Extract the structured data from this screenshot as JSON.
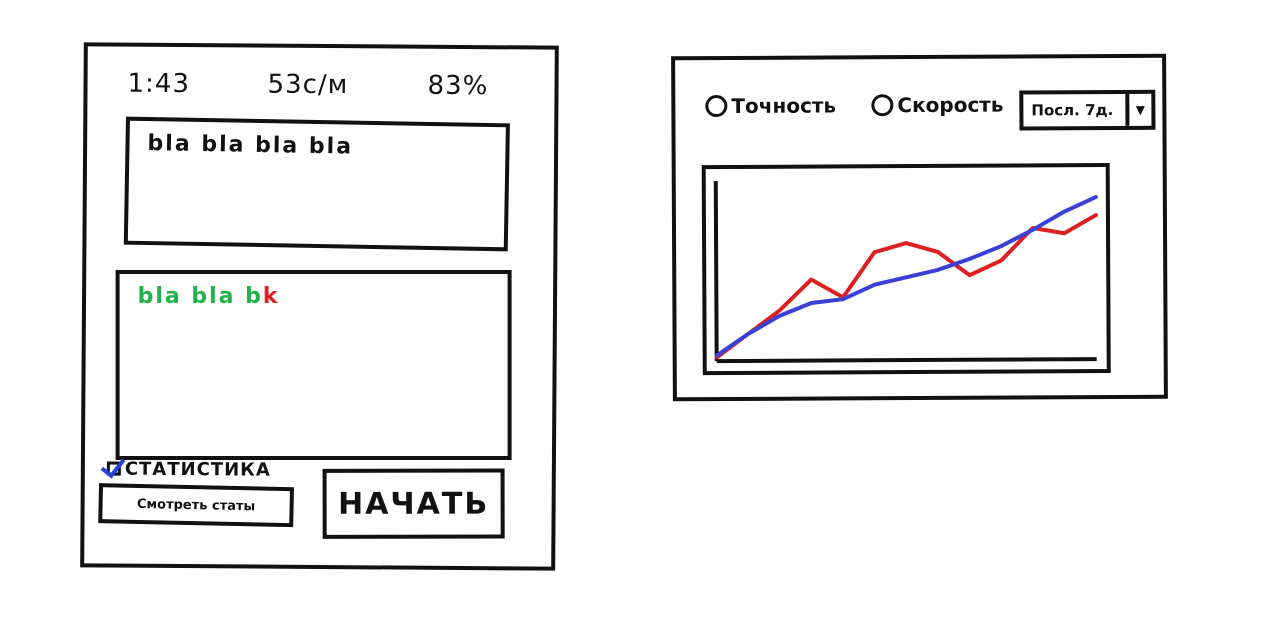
{
  "typing": {
    "timer": "1:43",
    "speed": "53с/м",
    "accuracy": "83%",
    "source_text": "bla bla bla bla",
    "typed_correct": "bla bla b",
    "typed_wrong": "k",
    "stats_checkbox_label": "СТАТИСТИКА",
    "stats_checked": true,
    "view_stats_label": "Смотреть статы",
    "start_label": "НАЧАТЬ"
  },
  "stats": {
    "radio_accuracy": "Точность",
    "radio_speed": "Скорость",
    "period": "Посл. 7д.",
    "colors": {
      "accuracy": "#e02020",
      "speed": "#3a3fd6"
    }
  },
  "chart_data": {
    "type": "line",
    "title": "",
    "xlabel": "",
    "ylabel": "",
    "x": [
      0,
      1,
      2,
      3,
      4,
      5,
      6,
      7,
      8,
      9,
      10,
      11,
      12
    ],
    "xlim": [
      0,
      12
    ],
    "ylim": [
      0,
      100
    ],
    "grid": false,
    "series": [
      {
        "color": "#e02020",
        "values": [
          2,
          15,
          28,
          45,
          35,
          60,
          65,
          60,
          47,
          55,
          73,
          70,
          80
        ]
      },
      {
        "color": "#3a3fd6",
        "values": [
          3,
          15,
          25,
          32,
          34,
          42,
          46,
          50,
          56,
          63,
          72,
          82,
          90
        ]
      }
    ]
  }
}
